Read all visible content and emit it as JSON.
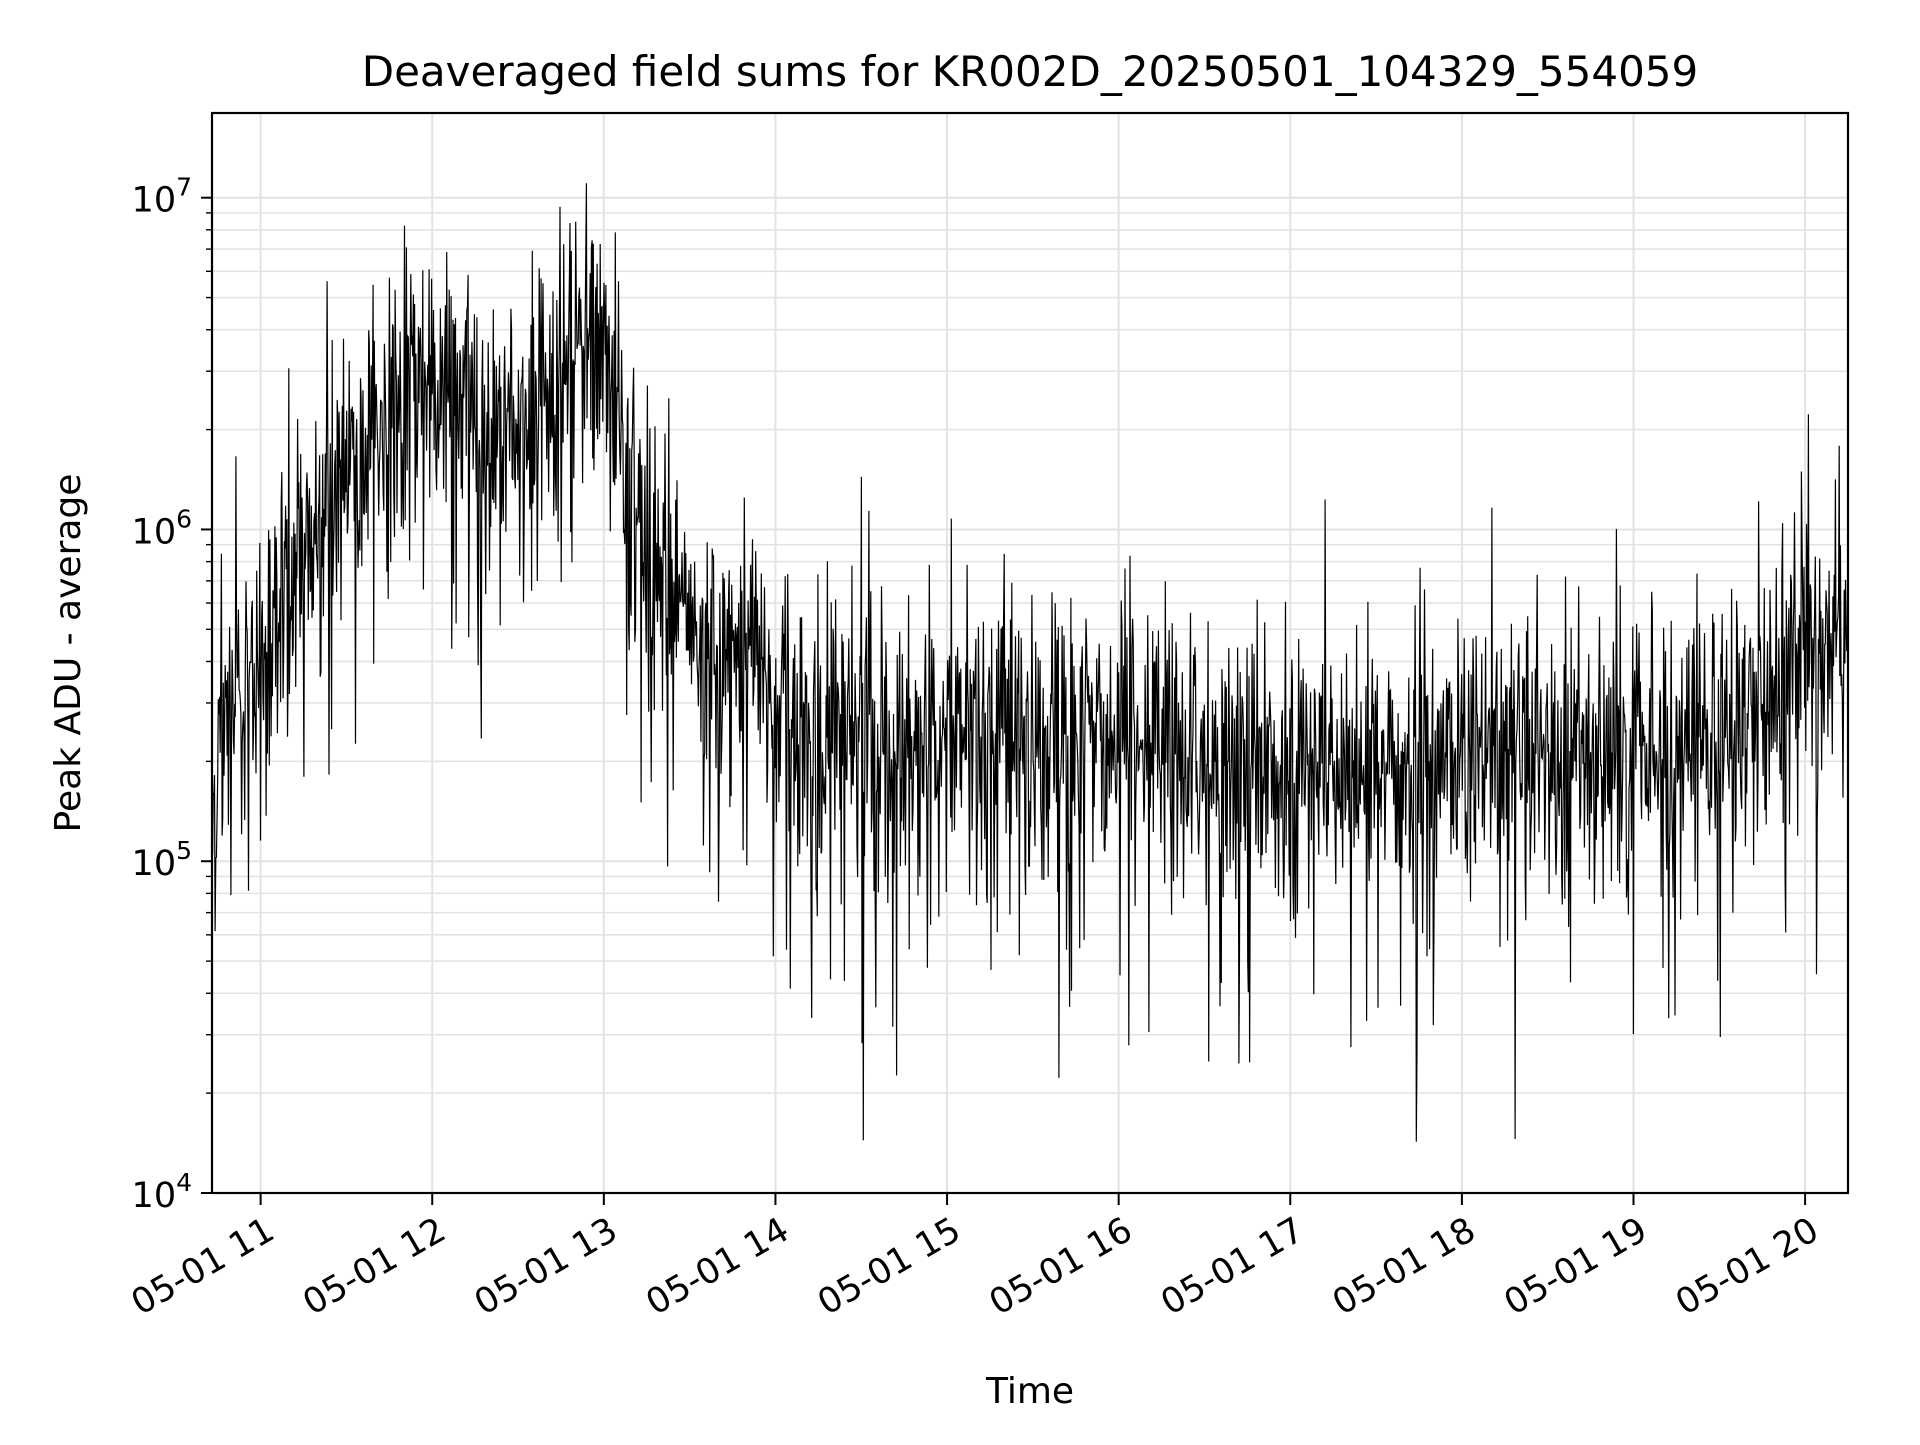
{
  "chart_data": {
    "type": "line",
    "title": "Deaveraged field sums for KR002D_20250501_104329_554059",
    "xlabel": "Time",
    "ylabel": "Peak ADU - average",
    "x_range": [
      "05-01 10:43",
      "05-01 20:15"
    ],
    "x_ticks": [
      "05-01 11",
      "05-01 12",
      "05-01 13",
      "05-01 14",
      "05-01 15",
      "05-01 16",
      "05-01 17",
      "05-01 18",
      "05-01 19",
      "05-01 20"
    ],
    "y_scale": "log",
    "ylim": [
      10000,
      18000000
    ],
    "y_ticks": [
      {
        "base": "10",
        "exp": "4"
      },
      {
        "base": "10",
        "exp": "5"
      },
      {
        "base": "10",
        "exp": "6"
      },
      {
        "base": "10",
        "exp": "7"
      }
    ],
    "grid": true,
    "legend": "none",
    "line_color": "#000000",
    "grid_color": "#e3e3e3",
    "series": [
      {
        "x": [
          "05-01 10:43",
          "05-01 10:45",
          "05-01 10:50",
          "05-01 10:55",
          "05-01 11:00",
          "05-01 11:10",
          "05-01 11:20",
          "05-01 11:30",
          "05-01 11:40",
          "05-01 11:50",
          "05-01 12:00",
          "05-01 12:10",
          "05-01 12:20",
          "05-01 12:30",
          "05-01 12:40",
          "05-01 12:50",
          "05-01 13:00",
          "05-01 13:10",
          "05-01 13:20",
          "05-01 13:30",
          "05-01 13:40",
          "05-01 13:50",
          "05-01 14:00",
          "05-01 14:20",
          "05-01 14:40",
          "05-01 15:00",
          "05-01 15:30",
          "05-01 16:00",
          "05-01 16:30",
          "05-01 17:00",
          "05-01 17:30",
          "05-01 18:00",
          "05-01 18:30",
          "05-01 19:00",
          "05-01 19:20",
          "05-01 19:40",
          "05-01 19:50",
          "05-01 20:00",
          "05-01 20:10",
          "05-01 20:15"
        ],
        "y": [
          120000,
          200000,
          300000,
          350000,
          450000,
          700000,
          1100000,
          1500000,
          1900000,
          2300000,
          2700000,
          2500000,
          2000000,
          1900000,
          2100000,
          3500000,
          3300000,
          1200000,
          700000,
          450000,
          380000,
          420000,
          280000,
          220000,
          200000,
          230000,
          260000,
          220000,
          200000,
          190000,
          190000,
          200000,
          200000,
          210000,
          230000,
          280000,
          370000,
          500000,
          470000,
          480000
        ]
      }
    ]
  }
}
